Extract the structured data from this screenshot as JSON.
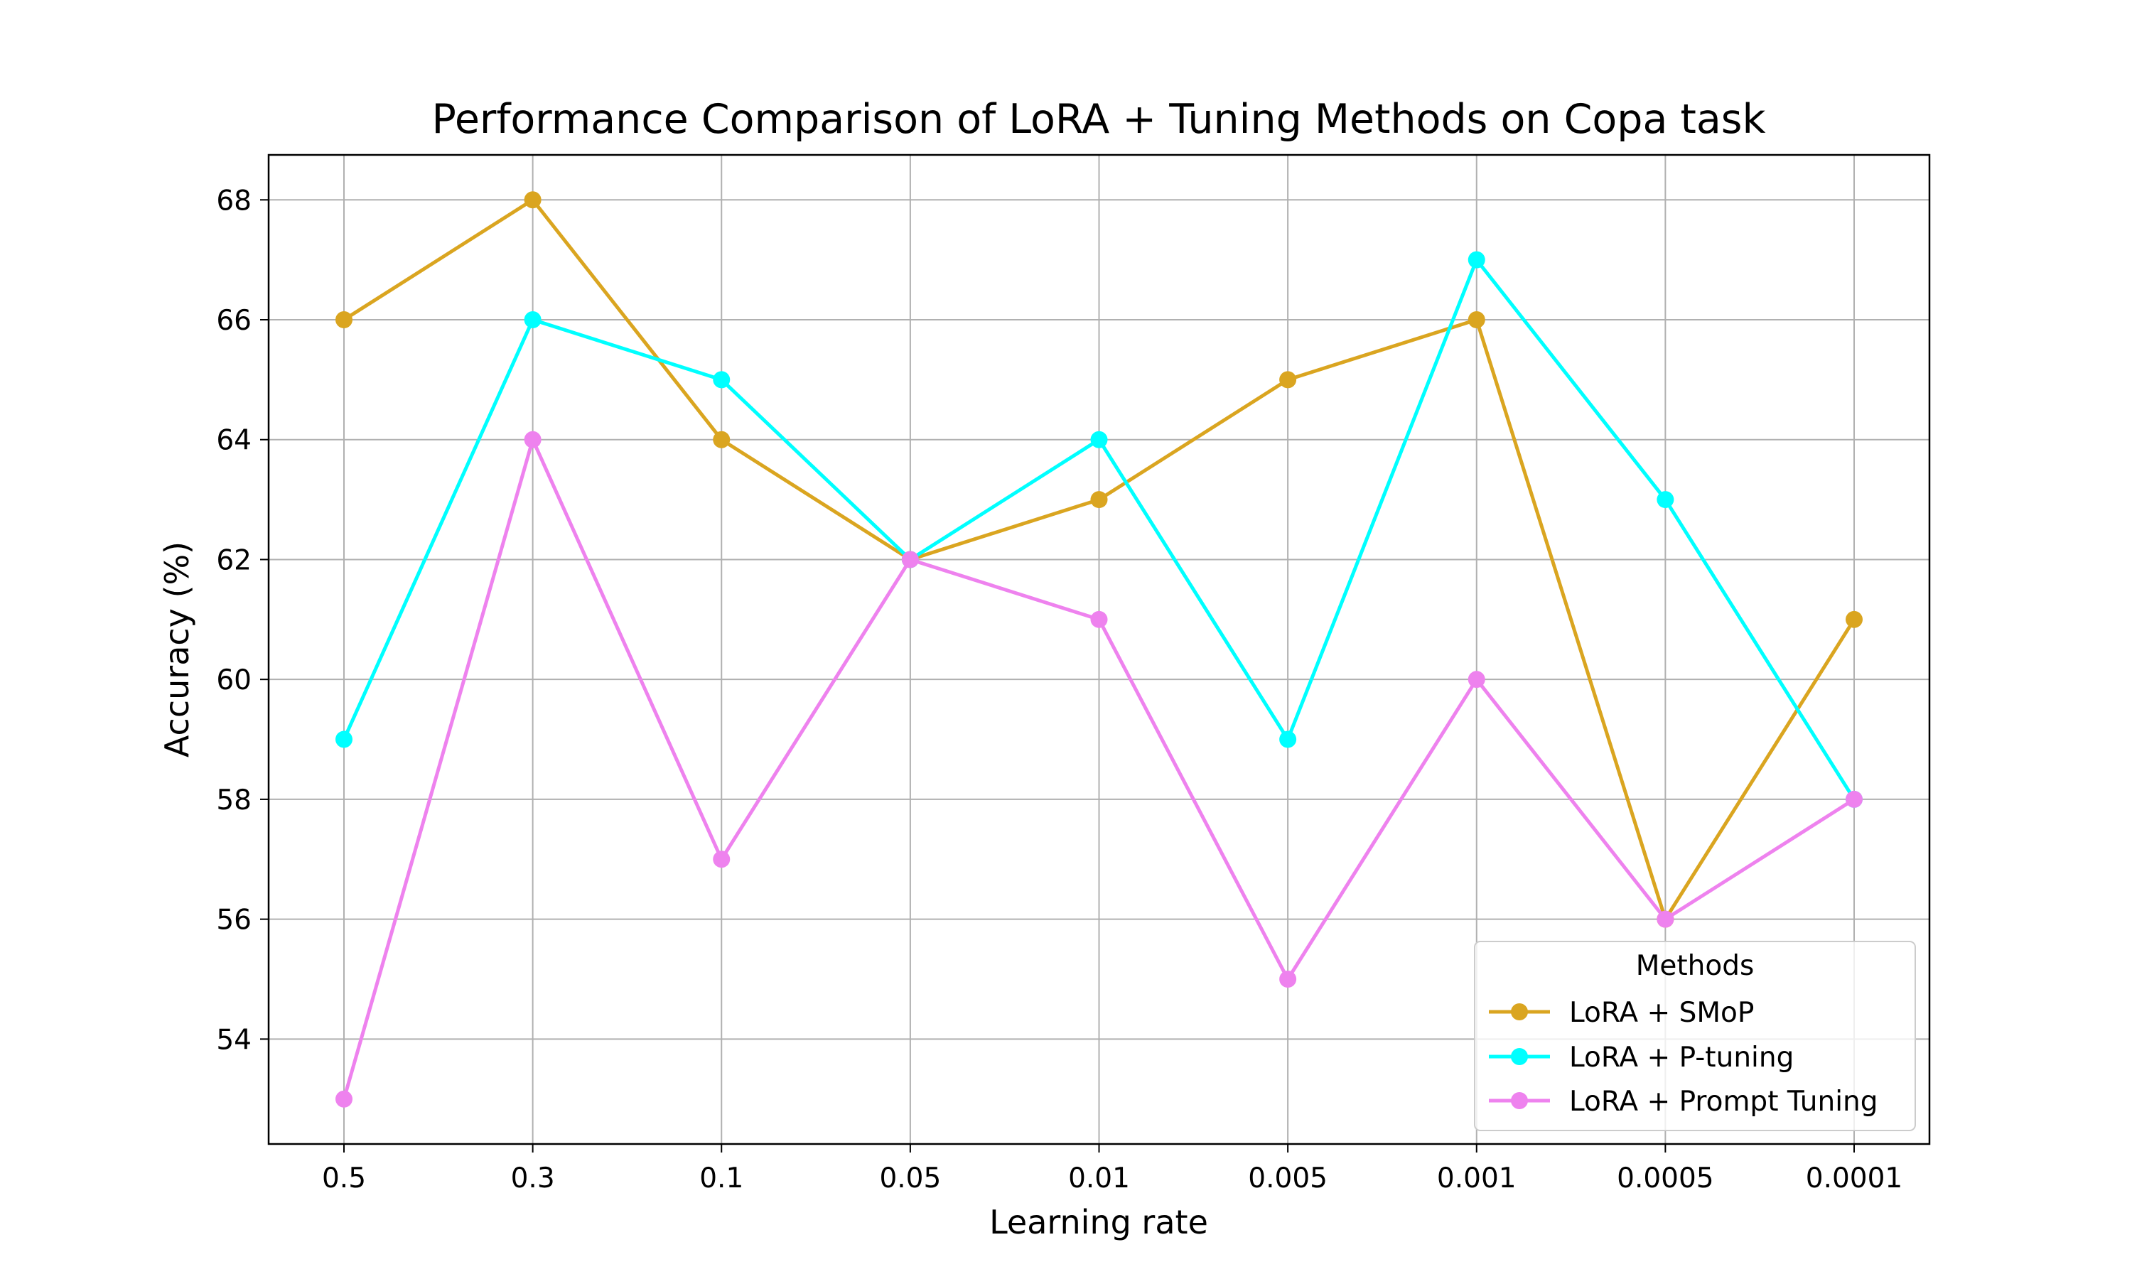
{
  "chart_data": {
    "type": "line",
    "title": "Performance Comparison of LoRA + Tuning Methods on Copa task",
    "xlabel": "Learning rate",
    "ylabel": "Accuracy (%)",
    "categories": [
      "0.5",
      "0.3",
      "0.1",
      "0.05",
      "0.01",
      "0.005",
      "0.001",
      "0.0005",
      "0.0001"
    ],
    "ylim": [
      52.25,
      68.75
    ],
    "yticks": [
      54,
      56,
      58,
      60,
      62,
      64,
      66,
      68
    ],
    "grid": true,
    "legend": {
      "title": "Methods",
      "position": "lower right"
    },
    "series": [
      {
        "name": "LoRA + SMoP",
        "color": "#DAA520",
        "values": [
          66,
          68,
          64,
          62,
          63,
          65,
          66,
          56,
          61
        ]
      },
      {
        "name": "LoRA + P-tuning",
        "color": "#00FFFF",
        "values": [
          59,
          66,
          65,
          62,
          64,
          59,
          67,
          63,
          58
        ]
      },
      {
        "name": "LoRA + Prompt Tuning",
        "color": "#EE82EE",
        "values": [
          53,
          64,
          57,
          62,
          61,
          55,
          60,
          56,
          58
        ]
      }
    ]
  }
}
